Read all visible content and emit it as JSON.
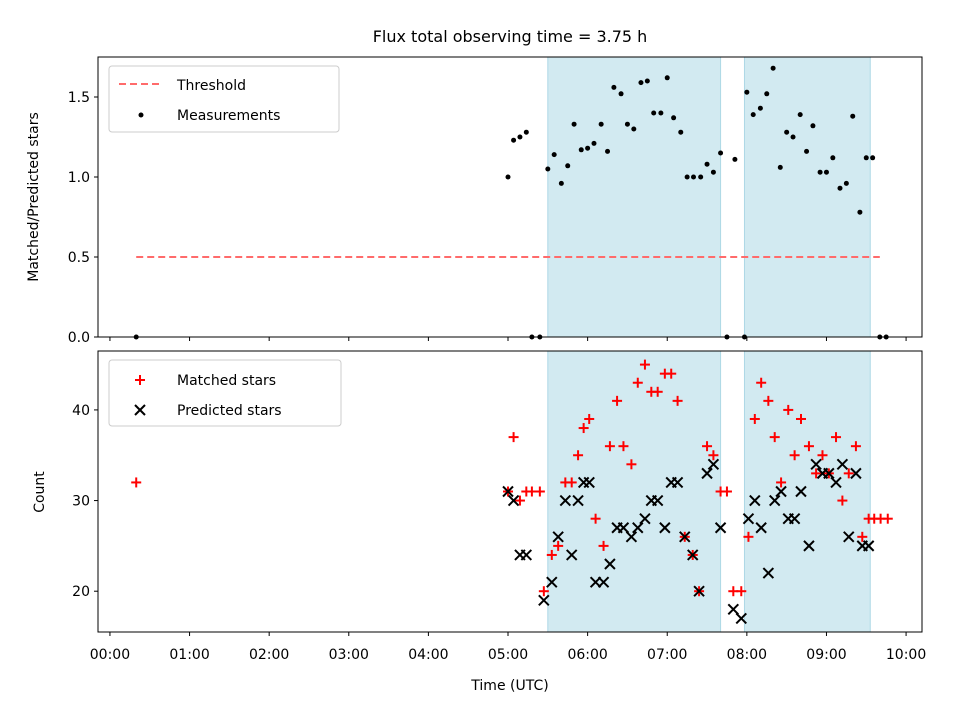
{
  "title": "Flux total observing time = 3.75 h",
  "colors": {
    "shade": "#add8e6",
    "threshold": "#ff6b6b",
    "matched": "#ff0000",
    "predicted": "#000000",
    "measurement": "#000000"
  },
  "chart_data": [
    {
      "type": "scatter",
      "ylabel": "Matched/Predicted stars",
      "ylim": [
        0,
        1.75
      ],
      "yticks": [
        0.0,
        0.5,
        1.0,
        1.5
      ],
      "ytick_labels": [
        "0.0",
        "0.5",
        "1.0",
        "1.5"
      ],
      "grid": false,
      "legend_position": "upper-left",
      "legend": [
        "Threshold",
        "Measurements"
      ],
      "threshold": {
        "name": "Threshold",
        "value": 0.5,
        "x_range": [
          0.33,
          9.67
        ]
      },
      "shaded_ranges": [
        [
          5.5,
          7.67
        ],
        [
          7.97,
          9.55
        ]
      ],
      "series": [
        {
          "name": "Measurements",
          "marker": "dot",
          "points": [
            [
              0.33,
              0
            ],
            [
              5.0,
              1.0
            ],
            [
              5.07,
              1.23
            ],
            [
              5.15,
              1.25
            ],
            [
              5.23,
              1.28
            ],
            [
              5.3,
              0
            ],
            [
              5.4,
              0
            ],
            [
              5.5,
              1.05
            ],
            [
              5.58,
              1.14
            ],
            [
              5.67,
              0.96
            ],
            [
              5.75,
              1.07
            ],
            [
              5.83,
              1.33
            ],
            [
              5.92,
              1.17
            ],
            [
              6.0,
              1.18
            ],
            [
              6.08,
              1.21
            ],
            [
              6.17,
              1.33
            ],
            [
              6.25,
              1.16
            ],
            [
              6.33,
              1.56
            ],
            [
              6.42,
              1.52
            ],
            [
              6.5,
              1.33
            ],
            [
              6.58,
              1.3
            ],
            [
              6.67,
              1.59
            ],
            [
              6.75,
              1.6
            ],
            [
              6.83,
              1.4
            ],
            [
              6.92,
              1.4
            ],
            [
              7.0,
              1.62
            ],
            [
              7.08,
              1.37
            ],
            [
              7.17,
              1.28
            ],
            [
              7.25,
              1.0
            ],
            [
              7.33,
              1.0
            ],
            [
              7.42,
              1.0
            ],
            [
              7.5,
              1.08
            ],
            [
              7.58,
              1.03
            ],
            [
              7.67,
              1.15
            ],
            [
              7.75,
              0
            ],
            [
              7.85,
              1.11
            ],
            [
              7.97,
              0
            ],
            [
              8.0,
              1.53
            ],
            [
              8.08,
              1.39
            ],
            [
              8.17,
              1.43
            ],
            [
              8.25,
              1.52
            ],
            [
              8.33,
              1.68
            ],
            [
              8.42,
              1.06
            ],
            [
              8.5,
              1.28
            ],
            [
              8.58,
              1.25
            ],
            [
              8.67,
              1.39
            ],
            [
              8.75,
              1.16
            ],
            [
              8.83,
              1.32
            ],
            [
              8.92,
              1.03
            ],
            [
              9.0,
              1.03
            ],
            [
              9.08,
              1.12
            ],
            [
              9.17,
              0.93
            ],
            [
              9.25,
              0.96
            ],
            [
              9.33,
              1.38
            ],
            [
              9.42,
              0.78
            ],
            [
              9.5,
              1.12
            ],
            [
              9.58,
              1.12
            ],
            [
              9.67,
              0
            ],
            [
              9.75,
              0
            ]
          ]
        }
      ]
    },
    {
      "type": "scatter",
      "xlabel": "Time (UTC)",
      "ylabel": "Count",
      "xlim": [
        -0.15,
        10.2
      ],
      "ylim": [
        15.5,
        46.5
      ],
      "xticks": [
        0,
        1,
        2,
        3,
        4,
        5,
        6,
        7,
        8,
        9,
        10
      ],
      "xtick_labels": [
        "00:00",
        "01:00",
        "02:00",
        "03:00",
        "04:00",
        "05:00",
        "06:00",
        "07:00",
        "08:00",
        "09:00",
        "10:00"
      ],
      "yticks": [
        20,
        30,
        40
      ],
      "ytick_labels": [
        "20",
        "30",
        "40"
      ],
      "grid": false,
      "legend_position": "upper-left",
      "legend": [
        "Matched stars",
        "Predicted stars"
      ],
      "shaded_ranges": [
        [
          5.5,
          7.67
        ],
        [
          7.97,
          9.55
        ]
      ],
      "series": [
        {
          "name": "Matched stars",
          "marker": "plus",
          "points": [
            [
              0.33,
              32
            ],
            [
              5.0,
              31
            ],
            [
              5.07,
              37
            ],
            [
              5.15,
              30
            ],
            [
              5.23,
              31
            ],
            [
              5.3,
              31
            ],
            [
              5.4,
              31
            ],
            [
              5.45,
              20
            ],
            [
              5.55,
              24
            ],
            [
              5.63,
              25
            ],
            [
              5.72,
              32
            ],
            [
              5.8,
              32
            ],
            [
              5.88,
              35
            ],
            [
              5.95,
              38
            ],
            [
              6.02,
              39
            ],
            [
              6.1,
              28
            ],
            [
              6.2,
              25
            ],
            [
              6.28,
              36
            ],
            [
              6.37,
              41
            ],
            [
              6.45,
              36
            ],
            [
              6.55,
              34
            ],
            [
              6.63,
              43
            ],
            [
              6.72,
              45
            ],
            [
              6.8,
              42
            ],
            [
              6.88,
              42
            ],
            [
              6.97,
              44
            ],
            [
              7.05,
              44
            ],
            [
              7.13,
              41
            ],
            [
              7.22,
              26
            ],
            [
              7.32,
              24
            ],
            [
              7.4,
              20
            ],
            [
              7.5,
              36
            ],
            [
              7.58,
              35
            ],
            [
              7.67,
              31
            ],
            [
              7.75,
              31
            ],
            [
              7.83,
              20
            ],
            [
              7.93,
              20
            ],
            [
              8.02,
              26
            ],
            [
              8.1,
              39
            ],
            [
              8.18,
              43
            ],
            [
              8.27,
              41
            ],
            [
              8.35,
              37
            ],
            [
              8.43,
              32
            ],
            [
              8.52,
              40
            ],
            [
              8.6,
              35
            ],
            [
              8.68,
              39
            ],
            [
              8.78,
              36
            ],
            [
              8.87,
              33
            ],
            [
              8.95,
              35
            ],
            [
              9.03,
              33
            ],
            [
              9.12,
              37
            ],
            [
              9.2,
              30
            ],
            [
              9.28,
              33
            ],
            [
              9.37,
              36
            ],
            [
              9.45,
              26
            ],
            [
              9.53,
              28
            ],
            [
              9.6,
              28
            ],
            [
              9.68,
              28
            ],
            [
              9.77,
              28
            ]
          ]
        },
        {
          "name": "Predicted stars",
          "marker": "x",
          "points": [
            [
              5.0,
              31
            ],
            [
              5.07,
              30
            ],
            [
              5.15,
              24
            ],
            [
              5.23,
              24
            ],
            [
              5.45,
              19
            ],
            [
              5.55,
              21
            ],
            [
              5.63,
              26
            ],
            [
              5.72,
              30
            ],
            [
              5.8,
              24
            ],
            [
              5.88,
              30
            ],
            [
              5.95,
              32
            ],
            [
              6.02,
              32
            ],
            [
              6.1,
              21
            ],
            [
              6.2,
              21
            ],
            [
              6.28,
              23
            ],
            [
              6.37,
              27
            ],
            [
              6.45,
              27
            ],
            [
              6.55,
              26
            ],
            [
              6.63,
              27
            ],
            [
              6.72,
              28
            ],
            [
              6.8,
              30
            ],
            [
              6.88,
              30
            ],
            [
              6.97,
              27
            ],
            [
              7.05,
              32
            ],
            [
              7.13,
              32
            ],
            [
              7.22,
              26
            ],
            [
              7.32,
              24
            ],
            [
              7.4,
              20
            ],
            [
              7.5,
              33
            ],
            [
              7.58,
              34
            ],
            [
              7.67,
              27
            ],
            [
              7.83,
              18
            ],
            [
              7.93,
              17
            ],
            [
              8.02,
              28
            ],
            [
              8.1,
              30
            ],
            [
              8.18,
              27
            ],
            [
              8.27,
              22
            ],
            [
              8.35,
              30
            ],
            [
              8.43,
              31
            ],
            [
              8.52,
              28
            ],
            [
              8.6,
              28
            ],
            [
              8.68,
              31
            ],
            [
              8.78,
              25
            ],
            [
              8.87,
              34
            ],
            [
              8.95,
              33
            ],
            [
              9.03,
              33
            ],
            [
              9.12,
              32
            ],
            [
              9.2,
              34
            ],
            [
              9.28,
              26
            ],
            [
              9.37,
              33
            ],
            [
              9.45,
              25
            ],
            [
              9.53,
              25
            ]
          ]
        }
      ]
    }
  ]
}
